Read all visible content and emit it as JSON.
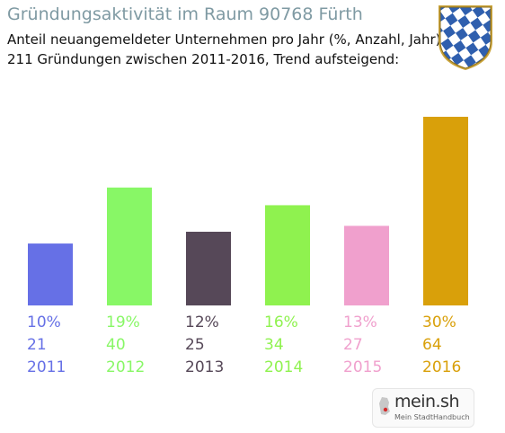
{
  "header": {
    "title": "Gründungsaktivität im Raum 90768 Fürth",
    "subtitle_line1": "Anteil neuangemeldeter Unternehmen pro Jahr (%, Anzahl, Jahr)",
    "subtitle_line2": "211 Gründungen zwischen 2011-2016, Trend aufsteigend:"
  },
  "logo": {
    "name": "mein.sh",
    "tagline": "Mein StadtHandbuch"
  },
  "chart_data": {
    "type": "bar",
    "categories": [
      "2011",
      "2012",
      "2013",
      "2014",
      "2015",
      "2016"
    ],
    "percent_labels": [
      "10%",
      "19%",
      "12%",
      "16%",
      "13%",
      "30%"
    ],
    "count_labels": [
      "21",
      "40",
      "25",
      "34",
      "27",
      "64"
    ],
    "values": [
      21,
      40,
      25,
      34,
      27,
      64
    ],
    "colors": [
      "#6670e6",
      "#88f766",
      "#564858",
      "#8ff24f",
      "#f0a0cd",
      "#d9a00a"
    ],
    "title": "Gründungsaktivität im Raum 90768 Fürth",
    "xlabel": "",
    "ylabel": "",
    "ylim": [
      0,
      64
    ],
    "grid": false,
    "legend": "none"
  }
}
